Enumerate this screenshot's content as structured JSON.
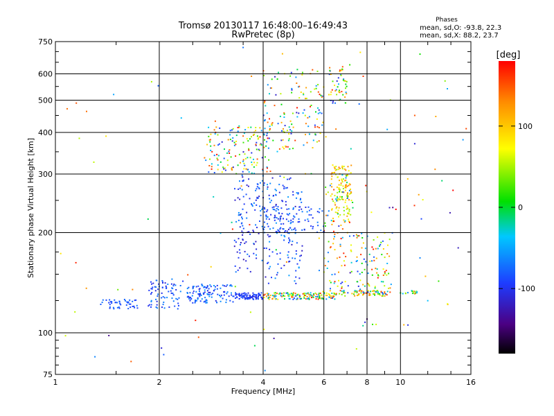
{
  "chart_data": {
    "type": "scatter",
    "title": "Tromsø 20130117 16:48:00–16:49:43",
    "subtitle": "RwPretec (8p)",
    "xlabel": "Frequency [MHz]",
    "ylabel": "Stationary phase Virtual Height [km]",
    "x_scale": "log",
    "y_scale": "log",
    "xlim": [
      1,
      16
    ],
    "ylim": [
      75,
      750
    ],
    "x_ticks": [
      1,
      2,
      4,
      6,
      8,
      10,
      16
    ],
    "y_ticks": [
      75,
      100,
      200,
      300,
      400,
      500,
      600,
      750
    ],
    "grid": true,
    "phase_stats": {
      "header": "Phases",
      "o_line": "mean, sd,O: -93.8, 22.3",
      "x_line": "mean, sd,X: 88.2, 23.7"
    },
    "colorbar": {
      "label": "[deg]",
      "range": [
        -180,
        180
      ],
      "ticks": [
        100,
        0,
        -100
      ],
      "colormap": "rainbow (black→purple→blue→cyan→green→yellow→orange→red)"
    },
    "colors": {
      "grid": "#000000",
      "background": "#ffffff"
    },
    "clusters": [
      {
        "x": [
          1.35,
          1.75
        ],
        "y": [
          118,
          126
        ],
        "n": 45,
        "phase": [
          -100,
          -70
        ]
      },
      {
        "x": [
          1.85,
          2.35
        ],
        "y": [
          118,
          145
        ],
        "n": 75,
        "phase": [
          -110,
          -60
        ]
      },
      {
        "x": [
          2.4,
          3.3
        ],
        "y": [
          123,
          140
        ],
        "n": 120,
        "phase": [
          -110,
          -50
        ]
      },
      {
        "x": [
          3.3,
          4.0
        ],
        "y": [
          126,
          132
        ],
        "n": 90,
        "phase": [
          -110,
          -80
        ]
      },
      {
        "x": [
          4.0,
          6.5
        ],
        "y": [
          126,
          132
        ],
        "n": 150,
        "phase": [
          -100,
          180
        ]
      },
      {
        "x": [
          6.5,
          9.3
        ],
        "y": [
          129,
          134
        ],
        "n": 70,
        "phase": [
          -100,
          180
        ]
      },
      {
        "x": [
          10.0,
          11.2
        ],
        "y": [
          131,
          134
        ],
        "n": 18,
        "phase": [
          -100,
          150
        ]
      },
      {
        "x": [
          2.7,
          4.2
        ],
        "y": [
          300,
          420
        ],
        "n": 150,
        "phase": [
          -120,
          180
        ]
      },
      {
        "x": [
          3.3,
          4.0
        ],
        "y": [
          150,
          300
        ],
        "n": 110,
        "phase": [
          -120,
          -60
        ]
      },
      {
        "x": [
          4.0,
          5.2
        ],
        "y": [
          140,
          300
        ],
        "n": 140,
        "phase": [
          -120,
          -50
        ]
      },
      {
        "x": [
          4.0,
          6.0
        ],
        "y": [
          200,
          240
        ],
        "n": 90,
        "phase": [
          -110,
          -60
        ]
      },
      {
        "x": [
          4.0,
          6.0
        ],
        "y": [
          350,
          620
        ],
        "n": 140,
        "phase": [
          -120,
          180
        ]
      },
      {
        "x": [
          6.3,
          7.2
        ],
        "y": [
          210,
          320
        ],
        "n": 120,
        "phase": [
          40,
          140
        ]
      },
      {
        "x": [
          6.0,
          7.3
        ],
        "y": [
          130,
          300
        ],
        "n": 100,
        "phase": [
          -110,
          180
        ]
      },
      {
        "x": [
          6.2,
          7.0
        ],
        "y": [
          480,
          620
        ],
        "n": 50,
        "phase": [
          -120,
          180
        ]
      },
      {
        "x": [
          7.3,
          9.5
        ],
        "y": [
          130,
          200
        ],
        "n": 90,
        "phase": [
          -110,
          180
        ]
      },
      {
        "x": [
          1.0,
          16.0
        ],
        "y": [
          80,
          700
        ],
        "n": 90,
        "phase": [
          -150,
          170
        ]
      }
    ],
    "points": [
      {
        "x": 1.07,
        "y": 98,
        "phase": 60
      },
      {
        "x": 1.15,
        "y": 490,
        "phase": 150
      },
      {
        "x": 2.03,
        "y": 90,
        "phase": -110
      },
      {
        "x": 2.06,
        "y": 86,
        "phase": -80
      },
      {
        "x": 2.6,
        "y": 97,
        "phase": 150
      },
      {
        "x": 3.5,
        "y": 720,
        "phase": -70
      },
      {
        "x": 3.7,
        "y": 590,
        "phase": 130
      },
      {
        "x": 4.05,
        "y": 77,
        "phase": -60
      },
      {
        "x": 6.8,
        "y": 630,
        "phase": 150
      },
      {
        "x": 7.8,
        "y": 590,
        "phase": 160
      },
      {
        "x": 8.0,
        "y": 110,
        "phase": -150
      },
      {
        "x": 8.3,
        "y": 106,
        "phase": 20
      },
      {
        "x": 8.5,
        "y": 106,
        "phase": 60
      },
      {
        "x": 9.5,
        "y": 238,
        "phase": -140
      },
      {
        "x": 9.7,
        "y": 235,
        "phase": 180
      },
      {
        "x": 10.5,
        "y": 290,
        "phase": 100
      },
      {
        "x": 11.0,
        "y": 450,
        "phase": 150
      },
      {
        "x": 11.0,
        "y": 370,
        "phase": -110
      },
      {
        "x": 11.3,
        "y": 260,
        "phase": 120
      },
      {
        "x": 11.5,
        "y": 220,
        "phase": -90
      },
      {
        "x": 12.6,
        "y": 310,
        "phase": 130
      },
      {
        "x": 12.9,
        "y": 143,
        "phase": 20
      },
      {
        "x": 14.2,
        "y": 268,
        "phase": 180
      },
      {
        "x": 14.7,
        "y": 180,
        "phase": -120
      }
    ]
  }
}
